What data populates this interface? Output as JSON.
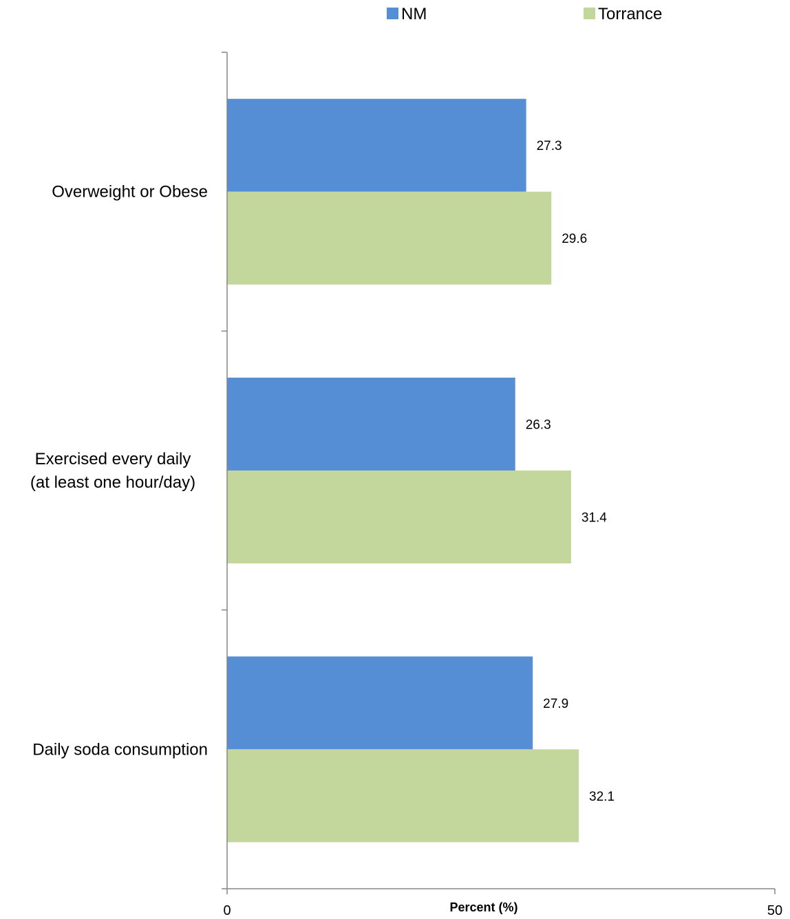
{
  "chart_data": {
    "type": "bar",
    "orientation": "horizontal",
    "categories": [
      [
        "Overweight or Obese"
      ],
      [
        "Exercised every daily",
        "(at least one hour/day)"
      ],
      [
        "Daily soda consumption"
      ]
    ],
    "series": [
      {
        "name": "NM",
        "color": "#558ED5",
        "values": [
          27.3,
          26.3,
          27.9
        ]
      },
      {
        "name": "Torrance",
        "color": "#C3D69B",
        "values": [
          29.6,
          31.4,
          32.1
        ]
      }
    ],
    "xlabel": "Percent (%)",
    "xlim": [
      0,
      50
    ],
    "x_ticks": [
      "0",
      "50"
    ],
    "grid": false,
    "legend_position": "top"
  }
}
